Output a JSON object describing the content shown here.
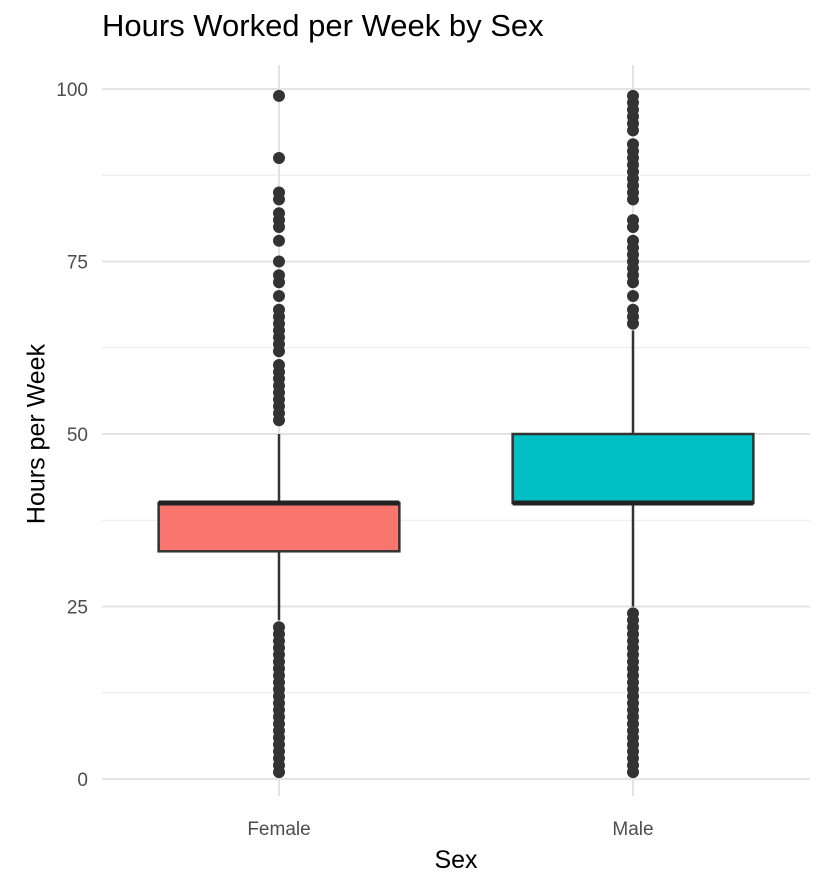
{
  "chart_data": {
    "type": "box",
    "title": "Hours Worked per Week by Sex",
    "xlabel": "Sex",
    "ylabel": "Hours per Week",
    "ylim": [
      0,
      100
    ],
    "y_ticks": [
      0,
      25,
      50,
      75,
      100
    ],
    "grid": true,
    "categories": [
      "Female",
      "Male"
    ],
    "boxes": [
      {
        "category": "Female",
        "color": "#F8766D",
        "q1": 33,
        "median": 40,
        "q3": 40,
        "whisker_low": 23,
        "whisker_high": 50,
        "outliers": [
          1,
          2,
          3,
          4,
          5,
          6,
          7,
          8,
          9,
          10,
          11,
          12,
          13,
          14,
          15,
          16,
          17,
          18,
          19,
          20,
          21,
          22,
          52,
          53,
          54,
          55,
          56,
          57,
          58,
          59,
          60,
          62,
          63,
          64,
          65,
          66,
          67,
          68,
          70,
          72,
          73,
          75,
          78,
          80,
          81,
          82,
          84,
          85,
          90,
          99
        ]
      },
      {
        "category": "Male",
        "color": "#00BFC4",
        "q1": 40,
        "median": 40,
        "q3": 50,
        "whisker_low": 25,
        "whisker_high": 65,
        "outliers": [
          1,
          2,
          3,
          4,
          5,
          6,
          7,
          8,
          9,
          10,
          11,
          12,
          13,
          14,
          15,
          16,
          17,
          18,
          19,
          20,
          21,
          22,
          23,
          24,
          66,
          67,
          68,
          70,
          72,
          73,
          74,
          75,
          76,
          77,
          78,
          80,
          81,
          84,
          85,
          86,
          87,
          88,
          89,
          90,
          91,
          92,
          94,
          95,
          96,
          97,
          98,
          99
        ]
      }
    ]
  }
}
